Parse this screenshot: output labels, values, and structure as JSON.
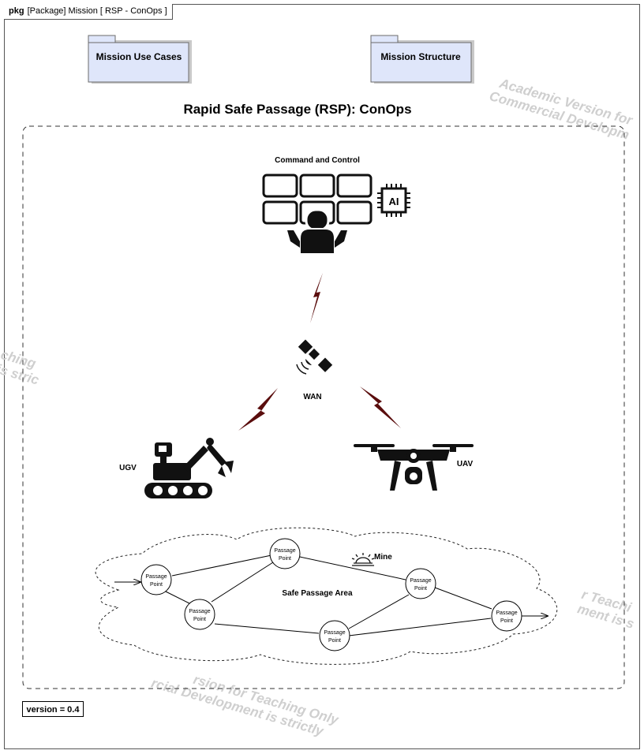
{
  "frame": {
    "kind": "pkg",
    "header": "[Package] Mission [ RSP - ConOps ]"
  },
  "packages": [
    {
      "label": "Mission Use Cases"
    },
    {
      "label": "Mission Structure"
    }
  ],
  "diagram_title": "Rapid Safe Passage (RSP): ConOps",
  "nodes": {
    "c2": "Command and Control",
    "ai": "AI",
    "wan": "WAN",
    "ugv": "UGV",
    "uav": "UAV",
    "mine": "Mine",
    "area": "Safe Passage Area"
  },
  "passage_points": [
    {
      "line1": "Passage",
      "line2": "Point"
    },
    {
      "line1": "Passage",
      "line2": "Point"
    },
    {
      "line1": "Passage",
      "line2": "Point"
    },
    {
      "line1": "Passage",
      "line2": "Point"
    },
    {
      "line1": "Passage",
      "line2": "Point"
    },
    {
      "line1": "Passage",
      "line2": "Point"
    }
  ],
  "version": "version = 0.4",
  "watermarks": [
    {
      "line1": "Academic Version for",
      "line2": "Commercial Developm"
    },
    {
      "line1": "ching",
      "line2": "is stric"
    },
    {
      "line1": "r Teachi",
      "line2": "ment is s"
    },
    {
      "line1": "rsion for Teaching Only",
      "line2": "rcial Development is strictly"
    }
  ],
  "colors": {
    "package_fill": "#dfe6fa",
    "package_border": "#6b6b6b",
    "lightning": "#5a0d0d",
    "icon": "#111111"
  }
}
